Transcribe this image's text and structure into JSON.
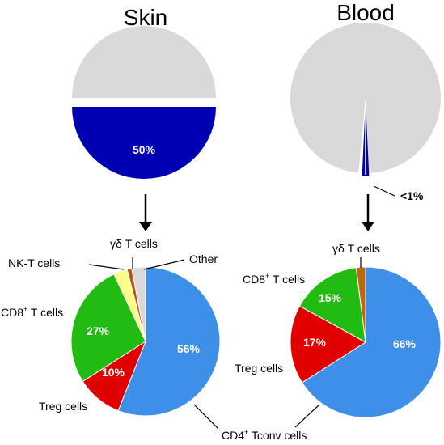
{
  "chart_data": [
    {
      "type": "pie",
      "title": "Skin",
      "labels": [
        "",
        ""
      ],
      "values": [
        50,
        50
      ],
      "colors": [
        "#d9d9d9",
        "#0000b3"
      ],
      "data_labels": [
        "",
        "50%"
      ],
      "exploded": true
    },
    {
      "type": "pie",
      "title": "Blood",
      "labels": [
        "",
        ""
      ],
      "values": [
        99.5,
        0.5
      ],
      "colors": [
        "#d9d9d9",
        "#0000b3"
      ],
      "data_labels": [
        "",
        "<1%"
      ]
    },
    {
      "type": "pie",
      "title": "",
      "labels": [
        "CD4+ Tconv cells",
        "Treg cells",
        "CD8+ T cells",
        "NK-T cells",
        "γδ T cells",
        "Other"
      ],
      "label_parts": [
        {
          "pre": "CD4",
          "sup": "+",
          "post": " Tconv cells"
        },
        {
          "pre": "Treg cells",
          "sup": "",
          "post": ""
        },
        {
          "pre": "CD8",
          "sup": "+",
          "post": " T cells"
        },
        {
          "pre": "NK-T cells",
          "sup": "",
          "post": ""
        },
        {
          "pre": "γδ T cells",
          "sup": "",
          "post": ""
        },
        {
          "pre": "Other",
          "sup": "",
          "post": ""
        }
      ],
      "values": [
        56,
        10,
        27,
        3,
        1,
        3
      ],
      "colors": [
        "#3d8fe8",
        "#e00000",
        "#22bb11",
        "#ffff88",
        "#bb5511",
        "#d9d9d9"
      ],
      "data_labels": [
        "56%",
        "10%",
        "27%",
        "",
        "",
        ""
      ]
    },
    {
      "type": "pie",
      "title": "",
      "labels": [
        "CD4+ Tconv cells",
        "Treg cells",
        "CD8+ T cells",
        "γδ T cells"
      ],
      "label_parts": [
        {
          "pre": "CD4",
          "sup": "+",
          "post": " Tconv cells"
        },
        {
          "pre": "Treg cells",
          "sup": "",
          "post": ""
        },
        {
          "pre": "CD8",
          "sup": "+",
          "post": " T cells"
        },
        {
          "pre": "γδ T cells",
          "sup": "",
          "post": ""
        }
      ],
      "values": [
        66,
        17,
        15,
        2
      ],
      "colors": [
        "#3d8fe8",
        "#e00000",
        "#22bb11",
        "#bb6611"
      ],
      "data_labels": [
        "66%",
        "17%",
        "15%",
        ""
      ]
    }
  ]
}
